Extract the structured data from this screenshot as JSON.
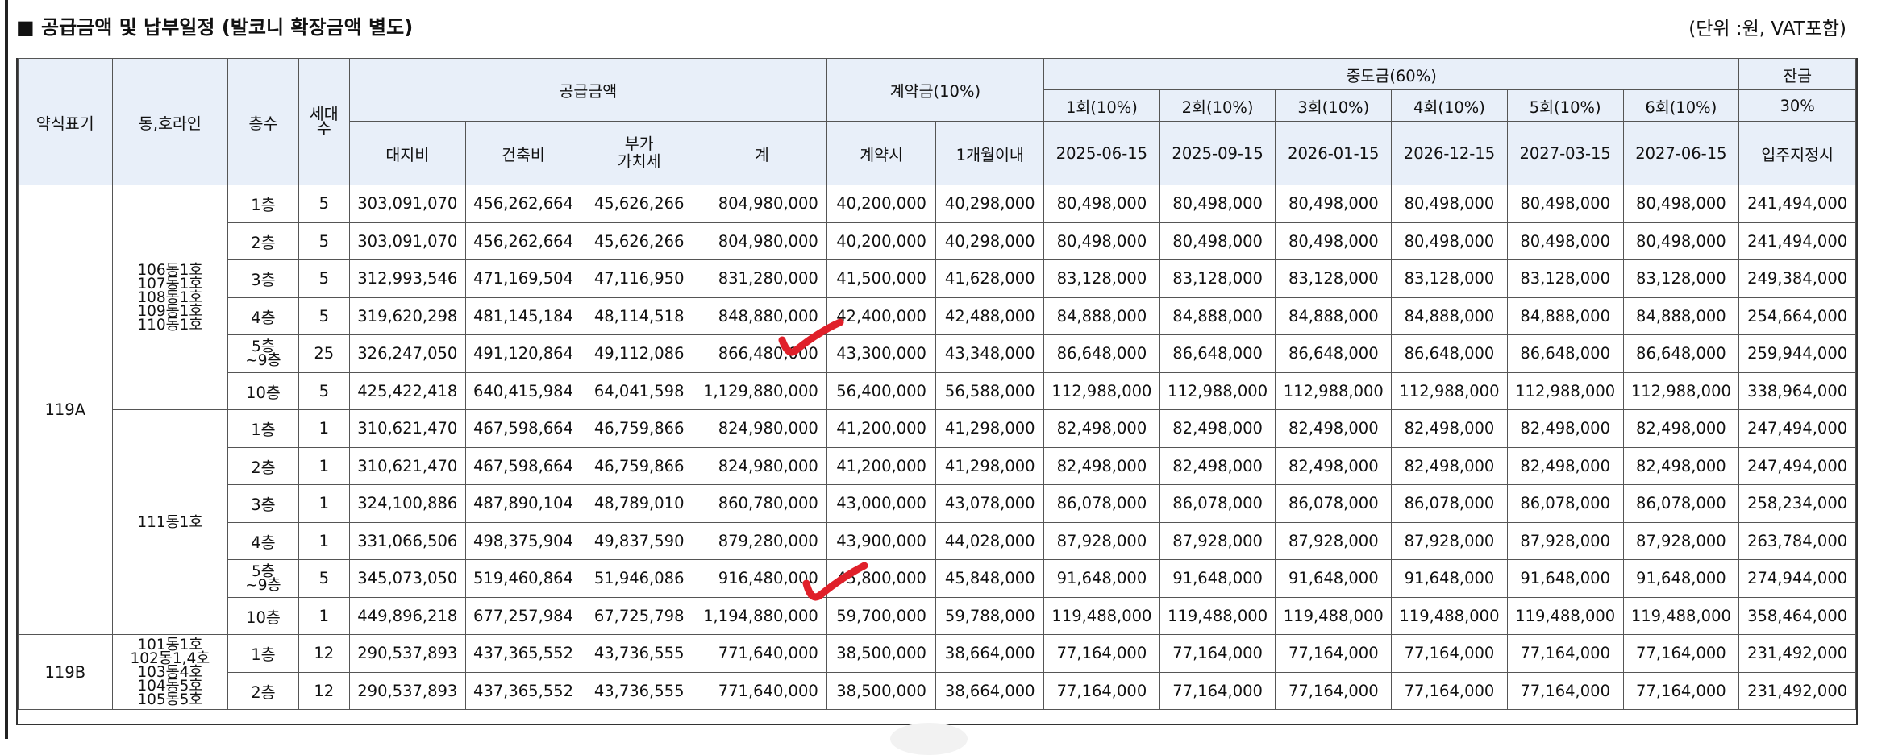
{
  "title": "■ 공급금액 및 납부일정 (발코니 확장금액 별도)",
  "unit_note": "(단위 :원, VAT포함)",
  "headers": {
    "type": "약식표기",
    "dong": "동,호라인",
    "floor": "층수",
    "households": "세대\n수",
    "supply": "공급금액",
    "land": "대지비",
    "building": "건축비",
    "vat": "부가\n가치세",
    "sum": "계",
    "deposit": "계약금(10%)",
    "on_contract": "계약시",
    "within_month": "1개월이내",
    "middle": "중도금(60%)",
    "m1": "1회(10%)",
    "m2": "2회(10%)",
    "m3": "3회(10%)",
    "m4": "4회(10%)",
    "m5": "5회(10%)",
    "m6": "6회(10%)",
    "d1": "2025-06-15",
    "d2": "2025-09-15",
    "d3": "2026-01-15",
    "d4": "2026-12-15",
    "d5": "2027-03-15",
    "d6": "2027-06-15",
    "balance": "잔금",
    "balance_pct": "30%",
    "move_in": "입주지정시"
  },
  "groups": {
    "g119a": "119A",
    "g119b": "119B",
    "dong_a1": "106동1호\n107동1호\n108동1호\n109동1호\n110동1호",
    "dong_a2": "111동1호",
    "dong_b": "101동1호\n102동1,4호\n103동4호\n104동5호\n105동5호"
  },
  "rows": [
    {
      "floor": "1층",
      "hh": "5",
      "land": "303,091,070",
      "bld": "456,262,664",
      "vat": "45,626,266",
      "sum": "804,980,000",
      "c": "40,200,000",
      "m": "40,298,000",
      "mid": "80,498,000",
      "bal": "241,494,000"
    },
    {
      "floor": "2층",
      "hh": "5",
      "land": "303,091,070",
      "bld": "456,262,664",
      "vat": "45,626,266",
      "sum": "804,980,000",
      "c": "40,200,000",
      "m": "40,298,000",
      "mid": "80,498,000",
      "bal": "241,494,000"
    },
    {
      "floor": "3층",
      "hh": "5",
      "land": "312,993,546",
      "bld": "471,169,504",
      "vat": "47,116,950",
      "sum": "831,280,000",
      "c": "41,500,000",
      "m": "41,628,000",
      "mid": "83,128,000",
      "bal": "249,384,000"
    },
    {
      "floor": "4층",
      "hh": "5",
      "land": "319,620,298",
      "bld": "481,145,184",
      "vat": "48,114,518",
      "sum": "848,880,000",
      "c": "42,400,000",
      "m": "42,488,000",
      "mid": "84,888,000",
      "bal": "254,664,000"
    },
    {
      "floor": "5층\n~9층",
      "hh": "25",
      "land": "326,247,050",
      "bld": "491,120,864",
      "vat": "49,112,086",
      "sum": "866,480,000",
      "c": "43,300,000",
      "m": "43,348,000",
      "mid": "86,648,000",
      "bal": "259,944,000"
    },
    {
      "floor": "10층",
      "hh": "5",
      "land": "425,422,418",
      "bld": "640,415,984",
      "vat": "64,041,598",
      "sum": "1,129,880,000",
      "c": "56,400,000",
      "m": "56,588,000",
      "mid": "112,988,000",
      "bal": "338,964,000"
    },
    {
      "floor": "1층",
      "hh": "1",
      "land": "310,621,470",
      "bld": "467,598,664",
      "vat": "46,759,866",
      "sum": "824,980,000",
      "c": "41,200,000",
      "m": "41,298,000",
      "mid": "82,498,000",
      "bal": "247,494,000"
    },
    {
      "floor": "2층",
      "hh": "1",
      "land": "310,621,470",
      "bld": "467,598,664",
      "vat": "46,759,866",
      "sum": "824,980,000",
      "c": "41,200,000",
      "m": "41,298,000",
      "mid": "82,498,000",
      "bal": "247,494,000"
    },
    {
      "floor": "3층",
      "hh": "1",
      "land": "324,100,886",
      "bld": "487,890,104",
      "vat": "48,789,010",
      "sum": "860,780,000",
      "c": "43,000,000",
      "m": "43,078,000",
      "mid": "86,078,000",
      "bal": "258,234,000"
    },
    {
      "floor": "4층",
      "hh": "1",
      "land": "331,066,506",
      "bld": "498,375,904",
      "vat": "49,837,590",
      "sum": "879,280,000",
      "c": "43,900,000",
      "m": "44,028,000",
      "mid": "87,928,000",
      "bal": "263,784,000"
    },
    {
      "floor": "5층\n~9층",
      "hh": "5",
      "land": "345,073,050",
      "bld": "519,460,864",
      "vat": "51,946,086",
      "sum": "916,480,000",
      "c": "45,800,000",
      "m": "45,848,000",
      "mid": "91,648,000",
      "bal": "274,944,000"
    },
    {
      "floor": "10층",
      "hh": "1",
      "land": "449,896,218",
      "bld": "677,257,984",
      "vat": "67,725,798",
      "sum": "1,194,880,000",
      "c": "59,700,000",
      "m": "59,788,000",
      "mid": "119,488,000",
      "bal": "358,464,000"
    },
    {
      "floor": "1층",
      "hh": "12",
      "land": "290,537,893",
      "bld": "437,365,552",
      "vat": "43,736,555",
      "sum": "771,640,000",
      "c": "38,500,000",
      "m": "38,664,000",
      "mid": "77,164,000",
      "bal": "231,492,000"
    },
    {
      "floor": "2층",
      "hh": "12",
      "land": "290,537,893",
      "bld": "437,365,552",
      "vat": "43,736,555",
      "sum": "771,640,000",
      "c": "38,500,000",
      "m": "38,664,000",
      "mid": "77,164,000",
      "bal": "231,492,000"
    }
  ],
  "annotation_color": "#e0202a"
}
